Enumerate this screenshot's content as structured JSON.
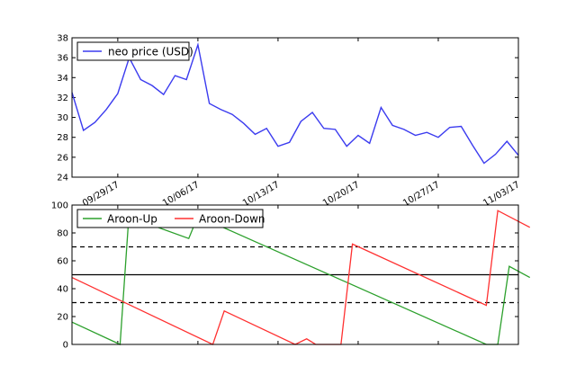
{
  "chart_data": [
    {
      "type": "line",
      "title": "",
      "xlabel": "",
      "ylabel": "",
      "ylim": [
        24,
        38
      ],
      "yticks": [
        24,
        26,
        28,
        30,
        32,
        34,
        36,
        38
      ],
      "x_start": "09/25/17",
      "x_end": "11/05/17",
      "xtick_labels": [
        "09/29/17",
        "10/06/17",
        "10/13/17",
        "10/20/17",
        "10/27/17",
        "11/03/17"
      ],
      "legend_position": "top-left",
      "grid": false,
      "series": [
        {
          "name": "neo price (USD)",
          "color": "#3b3bef",
          "values": [
            32.5,
            28.7,
            29.5,
            30.8,
            32.4,
            36.0,
            33.8,
            33.2,
            32.3,
            34.2,
            33.8,
            37.3,
            31.4,
            30.8,
            30.3,
            29.4,
            28.3,
            28.9,
            27.1,
            27.5,
            29.6,
            30.5,
            28.9,
            28.8,
            27.1,
            28.2,
            27.4,
            31.0,
            29.2,
            28.8,
            28.2,
            28.5,
            28.0,
            29.0,
            29.1,
            27.2,
            25.4,
            26.3,
            27.6,
            26.2
          ]
        }
      ]
    },
    {
      "type": "line",
      "title": "",
      "xlabel": "",
      "ylabel": "",
      "ylim": [
        0,
        100
      ],
      "yticks": [
        0,
        20,
        40,
        60,
        80,
        100
      ],
      "reference_lines": [
        {
          "y": 70,
          "style": "dashed"
        },
        {
          "y": 50,
          "style": "solid"
        },
        {
          "y": 30,
          "style": "dashed"
        }
      ],
      "legend_position": "top-left",
      "grid": false,
      "series": [
        {
          "name": "Aroon-Up",
          "color": "#2ca02c",
          "points": [
            [
              0,
              16
            ],
            [
              4.2,
              0
            ],
            [
              5,
              96
            ],
            [
              7.5,
              84
            ],
            [
              10.2,
              76
            ],
            [
              11,
              92
            ],
            [
              36.2,
              0
            ],
            [
              37.2,
              0
            ],
            [
              38.2,
              56
            ],
            [
              40,
              48
            ]
          ]
        },
        {
          "name": "Aroon-Down",
          "color": "#ff3030",
          "points": [
            [
              0,
              48
            ],
            [
              12.3,
              0
            ],
            [
              13.3,
              24
            ],
            [
              19.5,
              0
            ],
            [
              20.5,
              4
            ],
            [
              21.3,
              0
            ],
            [
              23.5,
              0
            ],
            [
              24.5,
              72
            ],
            [
              36.2,
              28
            ],
            [
              37.2,
              96
            ],
            [
              40,
              84
            ]
          ]
        }
      ]
    }
  ]
}
